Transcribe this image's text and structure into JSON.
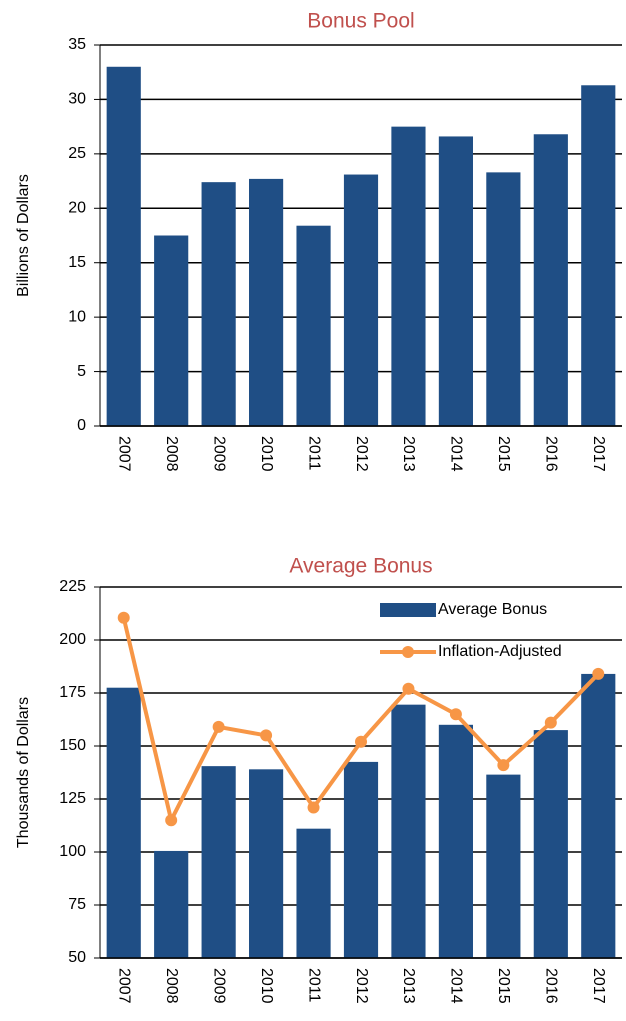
{
  "chart_data": [
    {
      "type": "bar",
      "title": "Bonus Pool",
      "ylabel": "Billions of Dollars",
      "categories": [
        "2007",
        "2008",
        "2009",
        "2010",
        "2011",
        "2012",
        "2013",
        "2014",
        "2015",
        "2016",
        "2017"
      ],
      "series": [
        {
          "name": "Bonus Pool",
          "color": "#1f4e85",
          "values": [
            33.0,
            17.5,
            22.4,
            22.7,
            18.4,
            23.1,
            27.5,
            26.6,
            23.3,
            26.8,
            31.3
          ]
        }
      ],
      "ylim": [
        0,
        35
      ],
      "yticks": [
        0,
        5,
        10,
        15,
        20,
        25,
        30,
        35
      ],
      "grid": true,
      "legend": false
    },
    {
      "type": "bar-line",
      "title": "Average Bonus",
      "ylabel": "Thousands of Dollars",
      "categories": [
        "2007",
        "2008",
        "2009",
        "2010",
        "2011",
        "2012",
        "2013",
        "2014",
        "2015",
        "2016",
        "2017"
      ],
      "series": [
        {
          "name": "Average Bonus",
          "type": "bar",
          "color": "#1f4e85",
          "values": [
            177.5,
            100.5,
            140.5,
            139,
            111,
            142.5,
            169.5,
            160,
            136.5,
            157.5,
            184
          ]
        },
        {
          "name": "Inflation-Adjusted",
          "type": "line",
          "color": "#f79646",
          "values": [
            210.5,
            115,
            159,
            155,
            121,
            152,
            177,
            165,
            141,
            161,
            184
          ]
        }
      ],
      "ylim": [
        50,
        225
      ],
      "yticks": [
        50,
        75,
        100,
        125,
        150,
        175,
        200,
        225
      ],
      "grid": true,
      "legend": "upper right"
    }
  ]
}
